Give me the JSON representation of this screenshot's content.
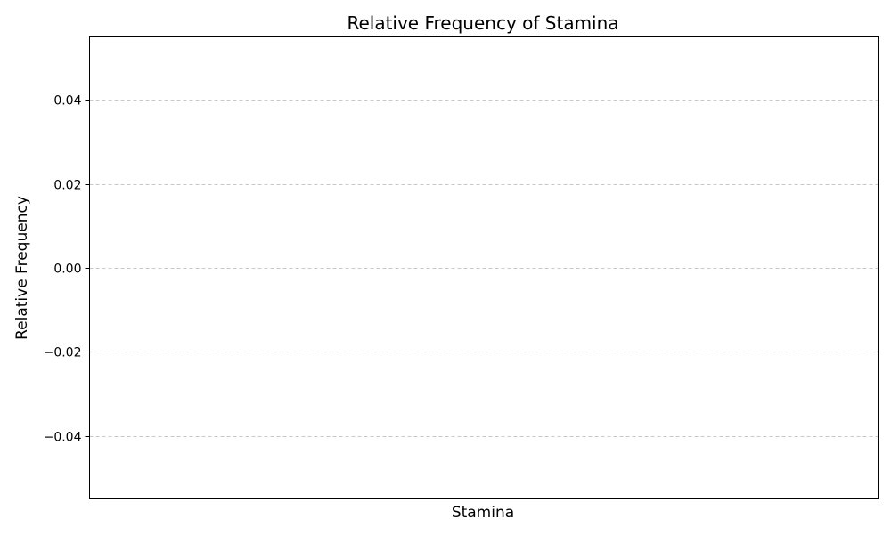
{
  "chart_data": {
    "type": "bar",
    "title": "Relative Frequency of Stamina",
    "xlabel": "Stamina",
    "ylabel": "Relative Frequency",
    "categories": [],
    "values": [],
    "ylim": [
      -0.055,
      0.055
    ],
    "yticks": [
      0.04,
      0.02,
      0.0,
      -0.02,
      -0.04
    ],
    "ytick_labels": [
      "0.04",
      "0.02",
      "0.00",
      "−0.02",
      "−0.04"
    ],
    "grid": "y-dashed",
    "colors": {
      "grid": "#c8c8c8",
      "axis": "#000000",
      "background": "#ffffff"
    }
  }
}
